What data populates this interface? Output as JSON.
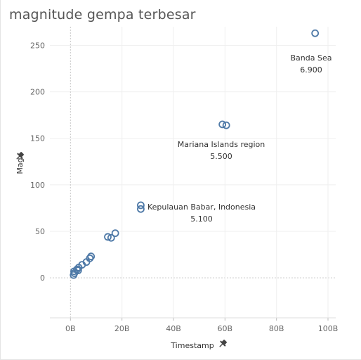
{
  "title": "magnitude gempa terbesar",
  "colors": {
    "marker": "#4e79a7",
    "gridline": "#efefef",
    "zero_line": "#c8c8c8",
    "text": "#333333"
  },
  "icons": {
    "pin": "pin-icon"
  },
  "chart_data": {
    "type": "scatter",
    "title": "magnitude gempa terbesar",
    "xlabel": "Timestamp",
    "ylabel": "Mag",
    "xlim": [
      -8,
      103
    ],
    "ylim": [
      -43,
      270
    ],
    "x_ticks": [
      0,
      20,
      40,
      60,
      80,
      100
    ],
    "x_tick_labels": [
      "0B",
      "20B",
      "40B",
      "60B",
      "80B",
      "100B"
    ],
    "y_ticks": [
      0,
      50,
      100,
      150,
      200,
      250
    ],
    "y_tick_labels": [
      "0",
      "50",
      "100",
      "150",
      "200",
      "250"
    ],
    "grid": true,
    "points": [
      {
        "x": 1.2,
        "y": 3
      },
      {
        "x": 1.5,
        "y": 5
      },
      {
        "x": 1.4,
        "y": 7
      },
      {
        "x": 2.5,
        "y": 9
      },
      {
        "x": 3.2,
        "y": 11
      },
      {
        "x": 3.0,
        "y": 8
      },
      {
        "x": 4.5,
        "y": 14
      },
      {
        "x": 6.2,
        "y": 17
      },
      {
        "x": 7.5,
        "y": 21
      },
      {
        "x": 8.0,
        "y": 23
      },
      {
        "x": 14.5,
        "y": 44
      },
      {
        "x": 15.8,
        "y": 43
      },
      {
        "x": 17.4,
        "y": 48
      },
      {
        "x": 27.3,
        "y": 74
      },
      {
        "x": 27.3,
        "y": 78
      },
      {
        "x": 59.0,
        "y": 165
      },
      {
        "x": 60.5,
        "y": 164
      },
      {
        "x": 95.0,
        "y": 263
      }
    ],
    "annotations": [
      {
        "name": "Kepulauan Babar, Indonesia",
        "value": "5.100"
      },
      {
        "name": "Mariana Islands region",
        "value": "5.500"
      },
      {
        "name": "Banda Sea",
        "value": "6.900"
      }
    ]
  }
}
